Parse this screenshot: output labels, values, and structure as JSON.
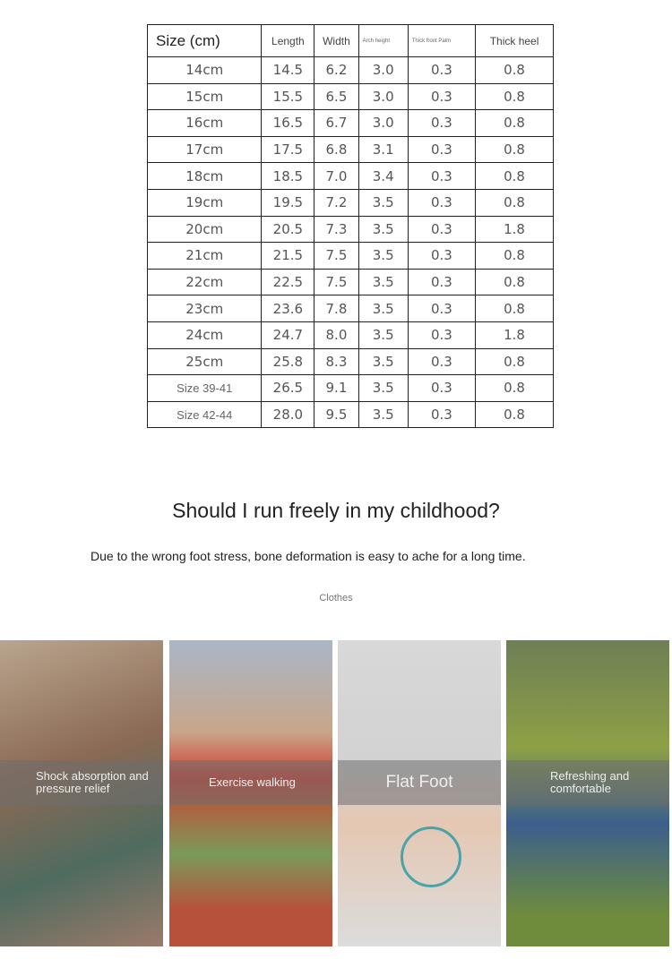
{
  "table": {
    "headers": [
      "Size (cm)",
      "Length",
      "Width",
      "Arch height",
      "Thick front Palm",
      "Thick heel"
    ],
    "rows": [
      [
        "14cm",
        "14.5",
        "6.2",
        "3.0",
        "0.3",
        "0.8"
      ],
      [
        "15cm",
        "15.5",
        "6.5",
        "3.0",
        "0.3",
        "0.8"
      ],
      [
        "16cm",
        "16.5",
        "6.7",
        "3.0",
        "0.3",
        "0.8"
      ],
      [
        "17cm",
        "17.5",
        "6.8",
        "3.1",
        "0.3",
        "0.8"
      ],
      [
        "18cm",
        "18.5",
        "7.0",
        "3.4",
        "0.3",
        "0.8"
      ],
      [
        "19cm",
        "19.5",
        "7.2",
        "3.5",
        "0.3",
        "0.8"
      ],
      [
        "20cm",
        "20.5",
        "7.3",
        "3.5",
        "0.3",
        "1.8"
      ],
      [
        "21cm",
        "21.5",
        "7.5",
        "3.5",
        "0.3",
        "0.8"
      ],
      [
        "22cm",
        "22.5",
        "7.5",
        "3.5",
        "0.3",
        "0.8"
      ],
      [
        "23cm",
        "23.6",
        "7.8",
        "3.5",
        "0.3",
        "0.8"
      ],
      [
        "24cm",
        "24.7",
        "8.0",
        "3.5",
        "0.3",
        "1.8"
      ],
      [
        "25cm",
        "25.8",
        "8.3",
        "3.5",
        "0.3",
        "0.8"
      ],
      [
        "Size 39-41",
        "26.5",
        "9.1",
        "3.5",
        "0.3",
        "0.8"
      ],
      [
        "Size 42-44",
        "28.0",
        "9.5",
        "3.5",
        "0.3",
        "0.8"
      ]
    ]
  },
  "heading": "Should I run freely in my childhood?",
  "subheading": "Due to the wrong foot stress, bone deformation is easy to ache for a long time.",
  "tag": "Clothes",
  "panels": [
    {
      "label": "Shock absorption and pressure relief",
      "bg": "linear-gradient(160deg,#b9a58e,#8b6a55 40%,#4f6b5f 70%,#9b7a6a)"
    },
    {
      "label": "Exercise walking",
      "bg": "linear-gradient(180deg,#a9b7c8 0%,#c8a58a 30%,#d04030 45%,#7a9a5a 70%,#b8513c 88%)"
    },
    {
      "label": "Flat Foot",
      "bg": "linear-gradient(180deg,#d8d8d8,#d2d2d2 40%,#e5c7b3 60%,#dcdcdc)"
    },
    {
      "label": "Refreshing and comfortable",
      "bg": "linear-gradient(180deg,#6d7f55 0%,#8ea045 35%,#3c5f8c 60%,#6f8c3c 90%)"
    }
  ]
}
